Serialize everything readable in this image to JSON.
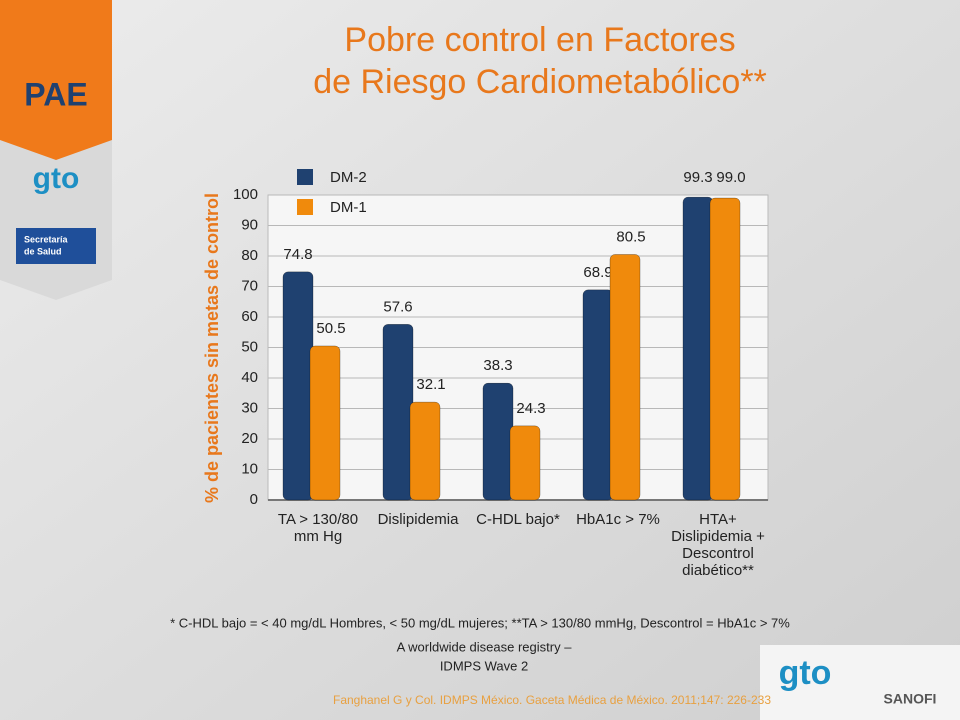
{
  "slide": {
    "logos": {
      "pae": "PAE",
      "gto_top": "gto",
      "secretaria": [
        "Secretaría",
        "de Salud"
      ],
      "gto_bottom": "gto",
      "sanofi": "SANOFI"
    },
    "footnote": "* C-HDL bajo = < 40 mg/dL Hombres, < 50 mg/dL mujeres; **TA > 130/80 mmHg, Descontrol = HbA1c > 7%",
    "source": [
      "A worldwide disease registry –",
      "IDMPS Wave 2"
    ],
    "citation": "Fanghanel G y Col. IDMPS México. Gaceta Médica de México. 2011;147: 226-233"
  },
  "chart_data": {
    "type": "bar",
    "title": [
      "Pobre control en Factores",
      "de Riesgo Cardiometabólico**"
    ],
    "y_label": "% de pacientes sin metas de control",
    "categories": [
      [
        "TA > 130/80",
        "mm Hg"
      ],
      [
        "Dislipidemia"
      ],
      [
        "C-HDL bajo*"
      ],
      [
        "HbA1c > 7%"
      ],
      [
        "HTA+",
        "Dislipidemia +",
        "Descontrol",
        "diabético**"
      ]
    ],
    "series": [
      {
        "name": "DM-2",
        "color": "#1f4170",
        "values": [
          74.8,
          57.6,
          38.3,
          68.9,
          99.3
        ],
        "value_labels": [
          "74.8",
          "57.6",
          "38.3",
          "68.9",
          "99.3"
        ]
      },
      {
        "name": "DM-1",
        "color": "#f08a0c",
        "values": [
          50.5,
          32.1,
          24.3,
          80.5,
          99.0
        ],
        "value_labels": [
          "50.5",
          "32.1",
          "24.3",
          "80.5",
          "99.0"
        ]
      }
    ],
    "ylim": [
      0,
      100
    ],
    "yticks": [
      0,
      10,
      20,
      30,
      40,
      50,
      60,
      70,
      80,
      90,
      100
    ],
    "grid": true
  }
}
